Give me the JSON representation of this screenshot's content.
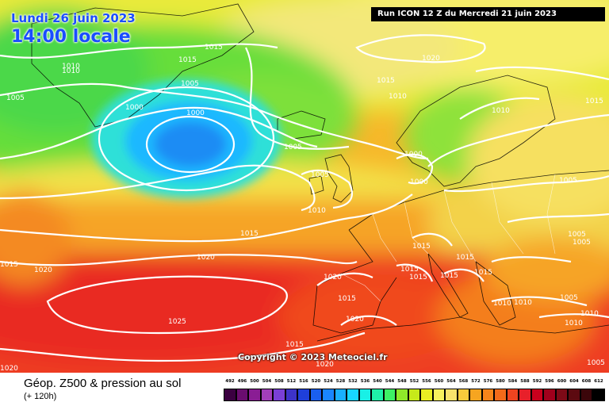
{
  "header": {
    "date": "Lundi 26 juin 2023",
    "time": "14:00 locale",
    "run": "Run ICON 12 Z du Mercredi 21 juin 2023"
  },
  "copyright": "Copyright © 2023 Meteociel.fr",
  "legend": {
    "title": "Géop. Z500 & pression au sol",
    "subtitle": "(+ 120h)",
    "ticks": [
      "492",
      "496",
      "500",
      "504",
      "508",
      "512",
      "516",
      "520",
      "524",
      "528",
      "532",
      "536",
      "540",
      "544",
      "548",
      "552",
      "556",
      "560",
      "564",
      "568",
      "572",
      "576",
      "580",
      "584",
      "588",
      "592",
      "596",
      "600",
      "604",
      "608",
      "612"
    ],
    "colors": [
      "#3b0040",
      "#6a0d6f",
      "#8a1d94",
      "#a23fba",
      "#7a3fd6",
      "#3d33c8",
      "#1f3fd9",
      "#1a5ff0",
      "#1a86ff",
      "#19b0ff",
      "#18d6ff",
      "#19f0e6",
      "#1ff0a8",
      "#3df065",
      "#8fe82a",
      "#c6ea1a",
      "#e9ee23",
      "#f7f05d",
      "#f8e26b",
      "#f8cb3c",
      "#f6a520",
      "#f6851a",
      "#f26a1a",
      "#ee4420",
      "#e8202a",
      "#c8001d",
      "#a0001c",
      "#7d0a17",
      "#5c0a10",
      "#3b060a",
      "#000000"
    ]
  },
  "isobars": [
    {
      "text": "1005"
    },
    {
      "text": "1010"
    },
    {
      "text": "1010"
    },
    {
      "text": "1015"
    },
    {
      "text": "1015"
    },
    {
      "text": "1005"
    },
    {
      "text": "1000"
    },
    {
      "text": "1000"
    },
    {
      "text": "1005"
    },
    {
      "text": "1005"
    },
    {
      "text": "1015"
    },
    {
      "text": "1010"
    },
    {
      "text": "1020"
    },
    {
      "text": "1015"
    },
    {
      "text": "1010"
    },
    {
      "text": "1010"
    },
    {
      "text": "1000"
    },
    {
      "text": "1000"
    },
    {
      "text": "1015"
    },
    {
      "text": "1020"
    },
    {
      "text": "1015"
    },
    {
      "text": "1020"
    },
    {
      "text": "1020"
    },
    {
      "text": "1015"
    },
    {
      "text": "1015"
    },
    {
      "text": "1015"
    },
    {
      "text": "1015"
    },
    {
      "text": "1025"
    },
    {
      "text": "1020"
    },
    {
      "text": "1015"
    },
    {
      "text": "1020"
    },
    {
      "text": "1015"
    },
    {
      "text": "1005"
    },
    {
      "text": "1005"
    },
    {
      "text": "1005"
    },
    {
      "text": "1010"
    },
    {
      "text": "1010"
    },
    {
      "text": "1005"
    },
    {
      "text": "1010"
    },
    {
      "text": "1010"
    },
    {
      "text": "1015"
    },
    {
      "text": "1020"
    },
    {
      "text": "1015"
    },
    {
      "text": "1005"
    }
  ]
}
